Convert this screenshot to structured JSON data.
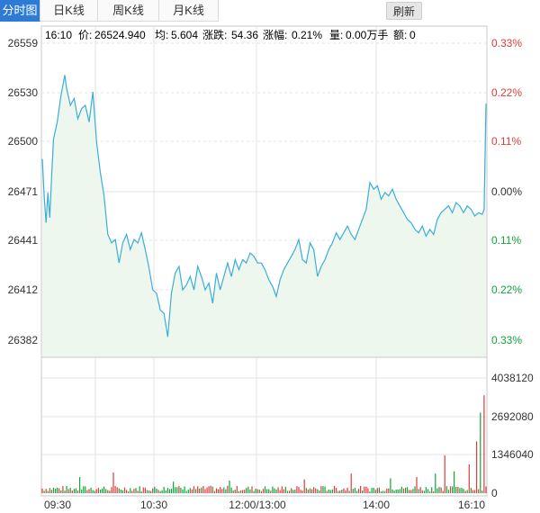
{
  "tabs": [
    {
      "label": "分时图",
      "active": true
    },
    {
      "label": "日K线",
      "active": false
    },
    {
      "label": "周K线",
      "active": false
    },
    {
      "label": "月K线",
      "active": false
    }
  ],
  "refresh_label": "刷新",
  "info": {
    "time": "16:10",
    "price_label": "价:",
    "price": "26524.940",
    "avg_label": "均:",
    "avg": "5.604",
    "change_label": "涨跌:",
    "change": "54.36",
    "pct_label": "涨幅:",
    "pct": "0.21%",
    "volume_label": "量:",
    "volume": "0.00万手",
    "amount_label": "额:",
    "amount": "0"
  },
  "colors": {
    "line": "#3aaed8",
    "fill": "#eef7ee",
    "up": "#e03a3a",
    "down": "#12a33a",
    "grid": "#e3e3e3",
    "axis_text": "#333333"
  },
  "chart_data": {
    "type": "line",
    "price_ticks": [
      "26559",
      "26530",
      "26500",
      "26471",
      "26441",
      "26412",
      "26382"
    ],
    "pct_ticks": [
      "0.33%",
      "0.22%",
      "0.11%",
      "0.00%",
      "0.11%",
      "0.22%",
      "0.33%"
    ],
    "volume_ticks": [
      "4038120",
      "2692080",
      "1346040",
      "0"
    ],
    "time_ticks": [
      "09:30",
      "10:30",
      "12:00/13:00",
      "14:00",
      "16:10"
    ],
    "ylim": [
      26382,
      26559
    ],
    "volume_max": 4038120,
    "price_keypoints": [
      [
        0,
        26490
      ],
      [
        1,
        26468
      ],
      [
        2,
        26452
      ],
      [
        3,
        26470
      ],
      [
        4,
        26455
      ],
      [
        5,
        26480
      ],
      [
        6,
        26502
      ],
      [
        8,
        26512
      ],
      [
        10,
        26528
      ],
      [
        12,
        26540
      ],
      [
        13,
        26532
      ],
      [
        15,
        26522
      ],
      [
        17,
        26526
      ],
      [
        19,
        26514
      ],
      [
        21,
        26520
      ],
      [
        23,
        26522
      ],
      [
        25,
        26512
      ],
      [
        27,
        26530
      ],
      [
        29,
        26500
      ],
      [
        31,
        26482
      ],
      [
        33,
        26468
      ],
      [
        35,
        26445
      ],
      [
        37,
        26440
      ],
      [
        39,
        26442
      ],
      [
        41,
        26428
      ],
      [
        43,
        26440
      ],
      [
        45,
        26445
      ],
      [
        47,
        26436
      ],
      [
        49,
        26442
      ],
      [
        51,
        26440
      ],
      [
        53,
        26446
      ],
      [
        55,
        26436
      ],
      [
        57,
        26425
      ],
      [
        59,
        26412
      ],
      [
        61,
        26410
      ],
      [
        63,
        26400
      ],
      [
        65,
        26398
      ],
      [
        67,
        26384
      ],
      [
        69,
        26410
      ],
      [
        71,
        26422
      ],
      [
        73,
        26426
      ],
      [
        75,
        26412
      ],
      [
        77,
        26415
      ],
      [
        79,
        26420
      ],
      [
        81,
        26412
      ],
      [
        83,
        26426
      ],
      [
        85,
        26420
      ],
      [
        87,
        26412
      ],
      [
        89,
        26416
      ],
      [
        91,
        26404
      ],
      [
        93,
        26422
      ],
      [
        95,
        26412
      ],
      [
        97,
        26420
      ],
      [
        99,
        26428
      ],
      [
        101,
        26420
      ],
      [
        103,
        26430
      ],
      [
        105,
        26424
      ],
      [
        107,
        26430
      ],
      [
        109,
        26428
      ],
      [
        111,
        26434
      ],
      [
        113,
        26432
      ],
      [
        115,
        26428
      ],
      [
        117,
        26428
      ],
      [
        119,
        26424
      ],
      [
        121,
        26418
      ],
      [
        123,
        26414
      ],
      [
        125,
        26408
      ],
      [
        127,
        26418
      ],
      [
        129,
        26424
      ],
      [
        131,
        26428
      ],
      [
        133,
        26432
      ],
      [
        135,
        26436
      ],
      [
        137,
        26442
      ],
      [
        139,
        26430
      ],
      [
        141,
        26428
      ],
      [
        143,
        26440
      ],
      [
        145,
        26436
      ],
      [
        147,
        26420
      ],
      [
        149,
        26426
      ],
      [
        151,
        26430
      ],
      [
        153,
        26436
      ],
      [
        155,
        26440
      ],
      [
        157,
        26446
      ],
      [
        159,
        26442
      ],
      [
        161,
        26446
      ],
      [
        163,
        26450
      ],
      [
        165,
        26445
      ],
      [
        167,
        26442
      ],
      [
        169,
        26448
      ],
      [
        171,
        26454
      ],
      [
        173,
        26460
      ],
      [
        175,
        26476
      ],
      [
        177,
        26472
      ],
      [
        179,
        26474
      ],
      [
        181,
        26466
      ],
      [
        183,
        26470
      ],
      [
        185,
        26468
      ],
      [
        187,
        26472
      ],
      [
        189,
        26466
      ],
      [
        191,
        26462
      ],
      [
        193,
        26458
      ],
      [
        195,
        26454
      ],
      [
        197,
        26452
      ],
      [
        199,
        26448
      ],
      [
        201,
        26446
      ],
      [
        203,
        26450
      ],
      [
        205,
        26444
      ],
      [
        207,
        26448
      ],
      [
        209,
        26445
      ],
      [
        211,
        26454
      ],
      [
        213,
        26458
      ],
      [
        215,
        26460
      ],
      [
        217,
        26462
      ],
      [
        219,
        26458
      ],
      [
        221,
        26464
      ],
      [
        223,
        26462
      ],
      [
        225,
        26458
      ],
      [
        227,
        26462
      ],
      [
        229,
        26460
      ],
      [
        231,
        26456
      ],
      [
        233,
        26458
      ],
      [
        235,
        26457
      ],
      [
        236,
        26460
      ],
      [
        237,
        26523
      ]
    ]
  }
}
